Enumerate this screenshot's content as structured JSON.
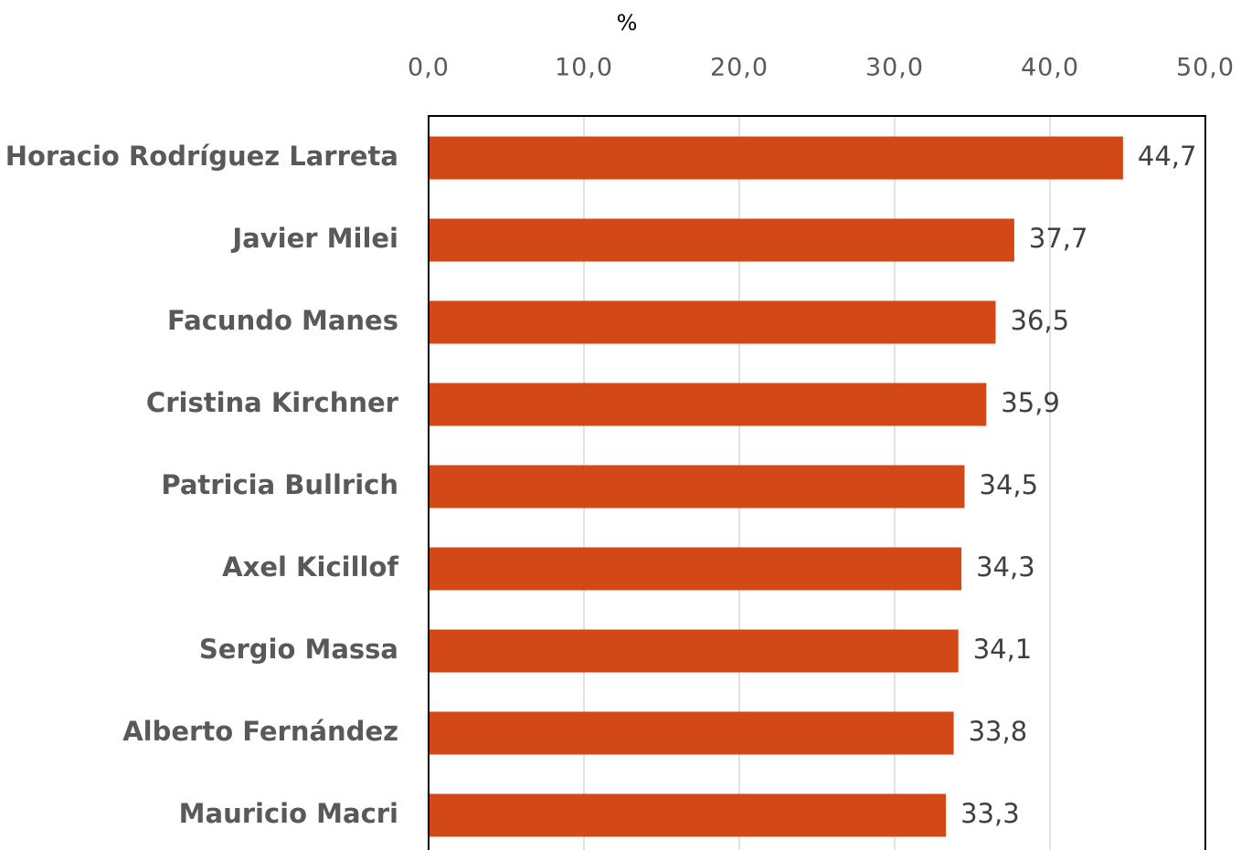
{
  "chart_data": {
    "type": "bar",
    "orientation": "horizontal",
    "x_axis_label": "%",
    "categories": [
      "Horacio Rodríguez Larreta",
      "Javier Milei",
      "Facundo Manes",
      "Cristina Kirchner",
      "Patricia Bullrich",
      "Axel Kicillof",
      "Sergio Massa",
      "Alberto Fernández",
      "Mauricio Macri"
    ],
    "values": [
      44.7,
      37.7,
      36.5,
      35.9,
      34.5,
      34.3,
      34.1,
      33.8,
      33.3
    ],
    "value_labels": [
      "44,7",
      "37,7",
      "36,5",
      "35,9",
      "34,5",
      "34,3",
      "34,1",
      "33,8",
      "33,3"
    ],
    "color": "#d34817",
    "xlim": [
      0,
      50
    ],
    "xticks": [
      {
        "value": 0,
        "label": "0,0"
      },
      {
        "value": 10,
        "label": "10,0"
      },
      {
        "value": 20,
        "label": "20,0"
      },
      {
        "value": 30,
        "label": "30,0"
      },
      {
        "value": 40,
        "label": "40,0"
      },
      {
        "value": 50,
        "label": "50,0"
      }
    ],
    "grid": true
  }
}
